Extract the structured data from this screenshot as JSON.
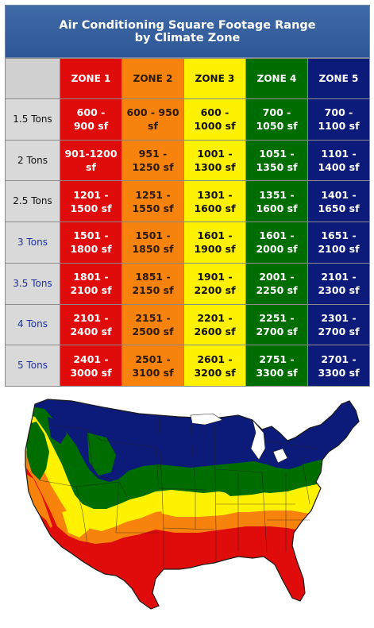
{
  "title": {
    "line1": "Air Conditioning Square Footage Range",
    "line2": "by Climate Zone"
  },
  "zones": [
    "ZONE 1",
    "ZONE 2",
    "ZONE 3",
    "ZONE 4",
    "ZONE 5"
  ],
  "zone_colors": [
    "#e00b0b",
    "#f7820c",
    "#fff200",
    "#006d00",
    "#0c1a79"
  ],
  "rows": [
    {
      "label": "1.5 Tons",
      "cells": [
        [
          "600 -",
          "900 sf"
        ],
        [
          "600 - 950",
          "sf"
        ],
        [
          "600 -",
          "1000 sf"
        ],
        [
          "700 -",
          "1050 sf"
        ],
        [
          "700 -",
          "1100 sf"
        ]
      ]
    },
    {
      "label": "2 Tons",
      "cells": [
        [
          "901-1200",
          "sf"
        ],
        [
          "951 -",
          "1250 sf"
        ],
        [
          "1001 -",
          "1300 sf"
        ],
        [
          "1051 -",
          "1350 sf"
        ],
        [
          "1101 -",
          "1400 sf"
        ]
      ]
    },
    {
      "label": "2.5 Tons",
      "cells": [
        [
          "1201 -",
          "1500 sf"
        ],
        [
          "1251 -",
          "1550 sf"
        ],
        [
          "1301 -",
          "1600 sf"
        ],
        [
          "1351 -",
          "1600 sf"
        ],
        [
          "1401 -",
          "1650 sf"
        ]
      ]
    },
    {
      "label": "3 Tons",
      "cells": [
        [
          "1501 -",
          "1800 sf"
        ],
        [
          "1501 -",
          "1850 sf"
        ],
        [
          "1601 -",
          "1900 sf"
        ],
        [
          "1601 -",
          "2000 sf"
        ],
        [
          "1651 -",
          "2100 sf"
        ]
      ]
    },
    {
      "label": "3.5 Tons",
      "cells": [
        [
          "1801 -",
          "2100 sf"
        ],
        [
          "1851 -",
          "2150 sf"
        ],
        [
          "1901 -",
          "2200 sf"
        ],
        [
          "2001 -",
          "2250 sf"
        ],
        [
          "2101 -",
          "2300 sf"
        ]
      ]
    },
    {
      "label": "4 Tons",
      "cells": [
        [
          "2101 -",
          "2400 sf"
        ],
        [
          "2151 -",
          "2500 sf"
        ],
        [
          "2201 -",
          "2600 sf"
        ],
        [
          "2251 -",
          "2700 sf"
        ],
        [
          "2301 -",
          "2700 sf"
        ]
      ]
    },
    {
      "label": "5 Tons",
      "cells": [
        [
          "2401 -",
          "3000 sf"
        ],
        [
          "2501 -",
          "3100 sf"
        ],
        [
          "2601 -",
          "3200 sf"
        ],
        [
          "2751 -",
          "3300 sf"
        ],
        [
          "2701 -",
          "3300 sf"
        ]
      ]
    }
  ],
  "rowhead_blue": [
    false,
    false,
    false,
    true,
    true,
    true,
    true
  ]
}
